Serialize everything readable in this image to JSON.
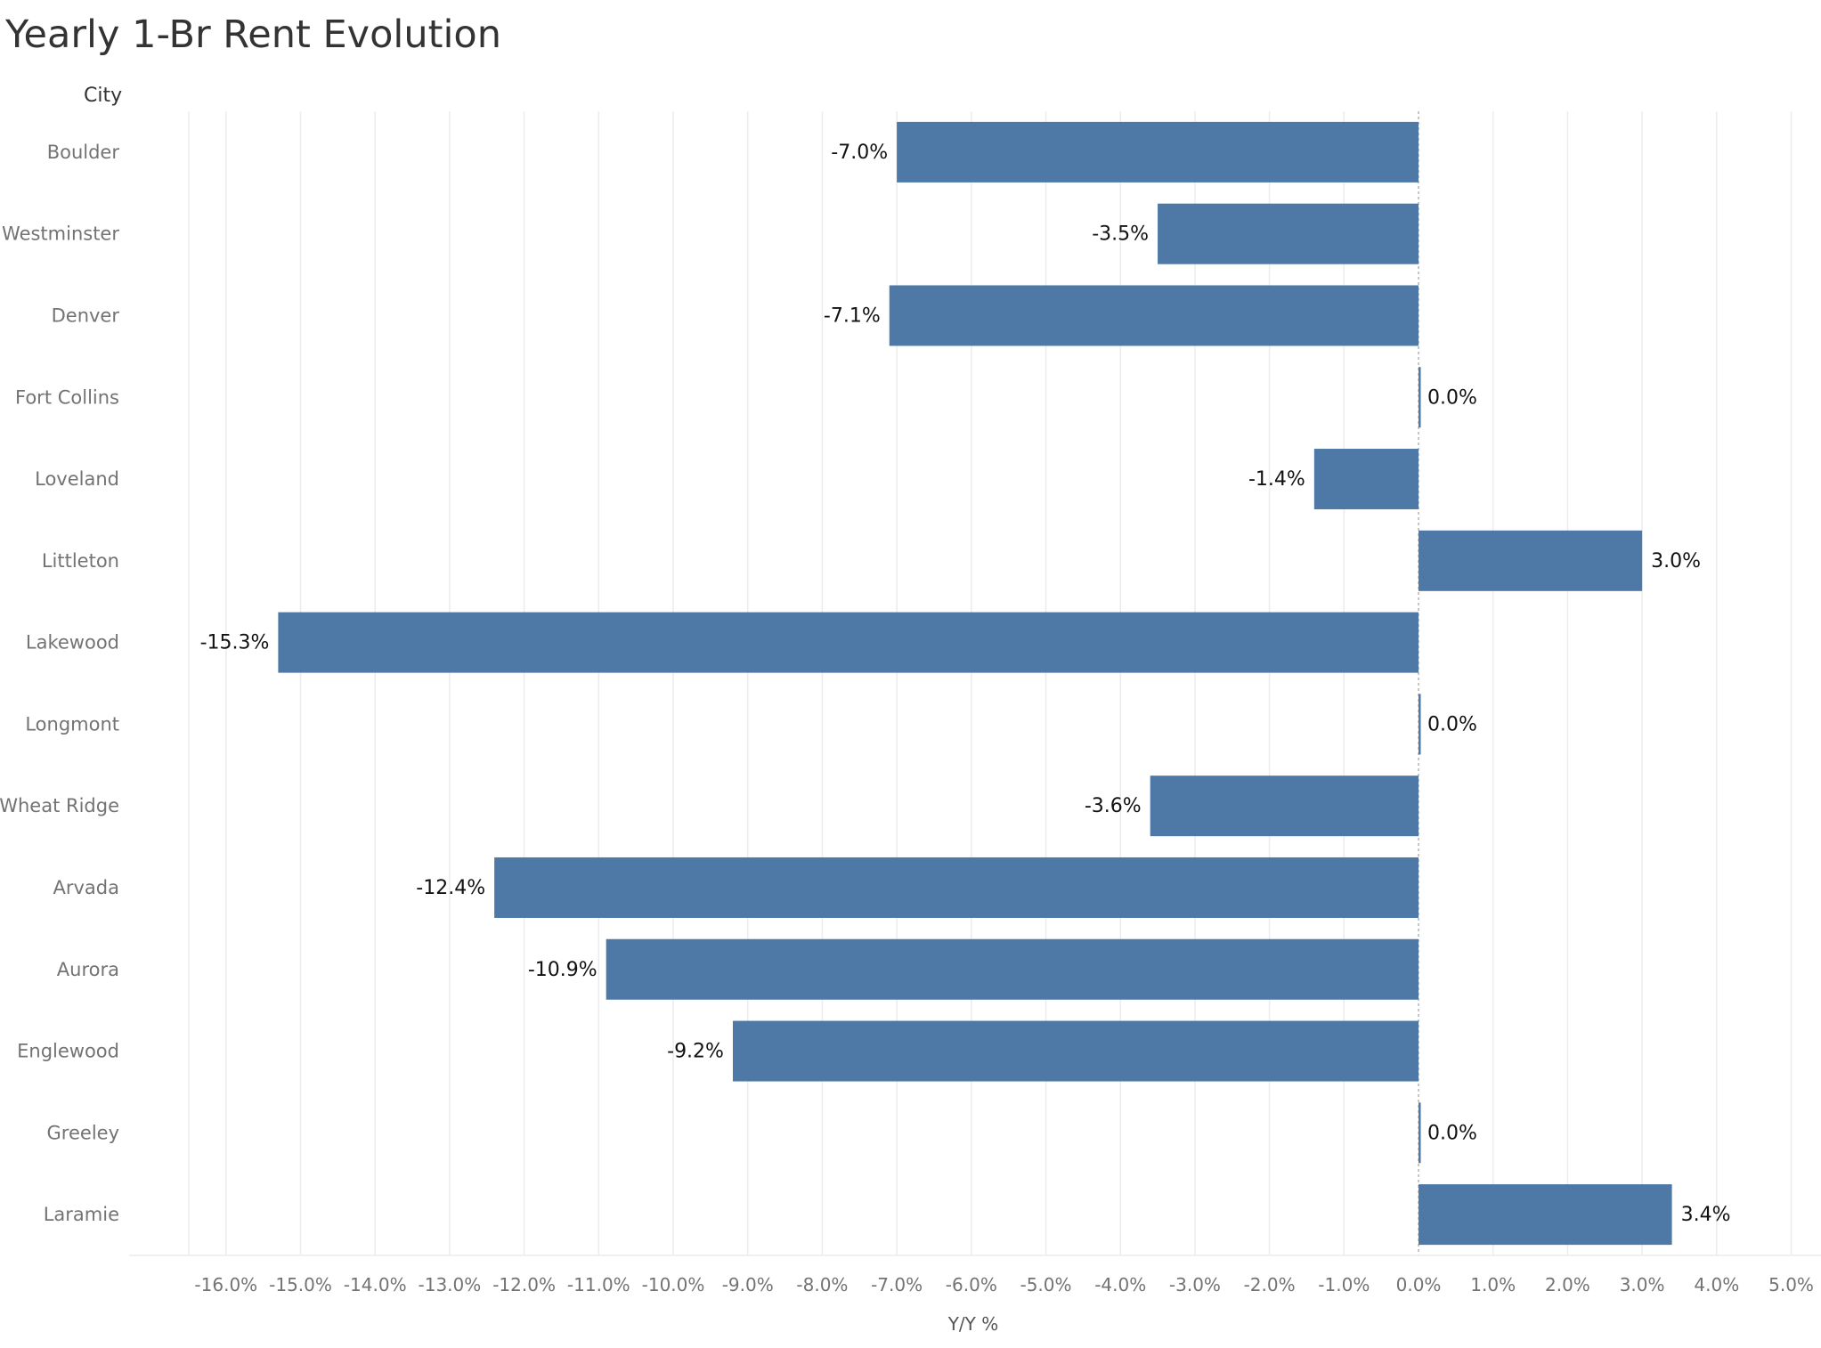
{
  "chart_data": {
    "type": "bar",
    "orientation": "horizontal",
    "title": "Yearly 1-Br Rent Evolution",
    "row_header": "City",
    "xlabel": "Y/Y %",
    "ylabel": "",
    "categories": [
      "Boulder",
      "Westminster",
      "Denver",
      "Fort Collins",
      "Loveland",
      "Littleton",
      "Lakewood",
      "Longmont",
      "Wheat Ridge",
      "Arvada",
      "Aurora",
      "Englewood",
      "Greeley",
      "Laramie"
    ],
    "values": [
      -7.0,
      -3.5,
      -7.1,
      0.0,
      -1.4,
      3.0,
      -15.3,
      0.0,
      -3.6,
      -12.4,
      -10.9,
      -9.2,
      0.0,
      3.4
    ],
    "data_labels": [
      "-7.0%",
      "-3.5%",
      "-7.1%",
      "0.0%",
      "-1.4%",
      "3.0%",
      "-15.3%",
      "0.0%",
      "-3.6%",
      "-12.4%",
      "-10.9%",
      "-9.2%",
      "0.0%",
      "3.4%"
    ],
    "xlim": [
      -17.3,
      5.4
    ],
    "x_ticks": [
      -16,
      -15,
      -14,
      -13,
      -12,
      -11,
      -10,
      -9,
      -8,
      -7,
      -6,
      -5,
      -4,
      -3,
      -2,
      -1,
      0,
      1,
      2,
      3,
      4,
      5
    ],
    "x_tick_labels": [
      "-16.0%",
      "-15.0%",
      "-14.0%",
      "-13.0%",
      "-12.0%",
      "-11.0%",
      "-10.0%",
      "-9.0%",
      "-8.0%",
      "-7.0%",
      "-6.0%",
      "-5.0%",
      "-4.0%",
      "-3.0%",
      "-2.0%",
      "-1.0%",
      "0.0%",
      "1.0%",
      "2.0%",
      "3.0%",
      "4.0%",
      "5.0%"
    ],
    "grid": "vertical",
    "colors": {
      "bar": "#4e79a7",
      "grid": "#ececec",
      "zero_line": "#b5b5b5"
    }
  }
}
